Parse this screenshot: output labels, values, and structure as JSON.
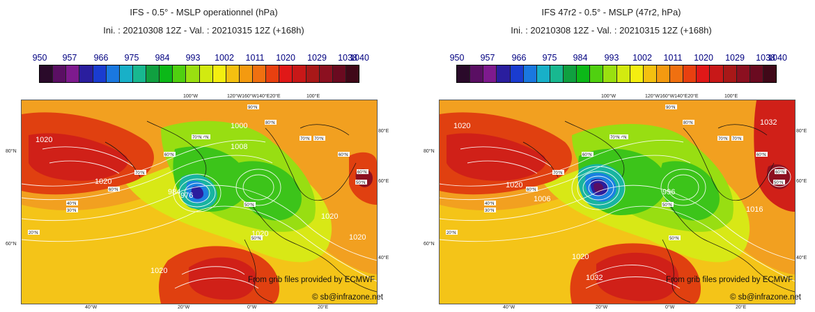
{
  "colorbar": {
    "labels": [
      "950",
      "957",
      "966",
      "975",
      "984",
      "993",
      "1002",
      "1011",
      "1020",
      "1029",
      "1038",
      "1040"
    ],
    "colors": [
      "#2a0a2a",
      "#5a0f63",
      "#7e1a8e",
      "#2a1e9e",
      "#1a3cd0",
      "#1a78e0",
      "#18b0c8",
      "#18b890",
      "#10a040",
      "#0cb818",
      "#50d010",
      "#9ae010",
      "#d2ea10",
      "#f4ee10",
      "#f4c010",
      "#f49a10",
      "#f07010",
      "#e84010",
      "#e01818",
      "#c81818",
      "#a81818",
      "#8c1020",
      "#6a0a20",
      "#400818"
    ]
  },
  "panels": [
    {
      "title_line1": "IFS - 0.5° - MSLP operationnel (hPa)",
      "title_line2": "Ini. : 20210308 12Z - Val. : 20210315 12Z (+168h)",
      "credit_line1": "From grib files provided by ECMWF",
      "credit_line2": "© sb@infrazone.net",
      "isobar_labels": [
        "1020",
        "1020",
        "1020",
        "1020",
        "984",
        "976",
        "1000",
        "1008",
        "1020",
        "1020"
      ],
      "lat_labels": [
        "80°N",
        "60°N"
      ],
      "lon_labels": [
        "40°W",
        "20°W",
        "0°W",
        "20°E"
      ],
      "top_lon_labels": [
        "100°W",
        "120°W160°W140°E20°E",
        "100°E"
      ],
      "right_lat_labels": [
        "80°E",
        "60°E",
        "40°E"
      ],
      "grid_labels": [
        "90°N",
        "80°N",
        "80°N",
        "70°N",
        "70°N",
        "70°N",
        "60°N",
        "60°N",
        "50°N",
        "40°N",
        "30°N",
        "20°N",
        "70°N",
        "60°N",
        "50°N",
        "60°N",
        "50°N"
      ]
    },
    {
      "title_line1": "IFS 47r2 - 0.5° - MSLP (47r2, hPa)",
      "title_line2": "Ini. : 20210308 12Z - Val. : 20210315 12Z (+168h)",
      "credit_line1": "From grib files provided by ECMWF",
      "credit_line2": "© sb@infrazone.net",
      "isobar_labels": [
        "1020",
        "1020",
        "1032",
        "1006",
        "996",
        "1032",
        "1020",
        "1016"
      ],
      "lat_labels": [
        "80°N",
        "60°N"
      ],
      "lon_labels": [
        "40°W",
        "20°W",
        "0°W",
        "20°E"
      ],
      "top_lon_labels": [
        "100°W",
        "120°W160°W140°E20°E",
        "100°E"
      ],
      "right_lat_labels": [
        "80°E",
        "60°E",
        "40°E"
      ],
      "grid_labels": [
        "90°N",
        "80°N",
        "80°N",
        "70°N",
        "70°N",
        "70°N",
        "60°N",
        "60°N",
        "50°N",
        "40°N",
        "30°N",
        "20°N",
        "70°N",
        "60°N",
        "50°N",
        "60°N",
        "50°N"
      ]
    }
  ]
}
